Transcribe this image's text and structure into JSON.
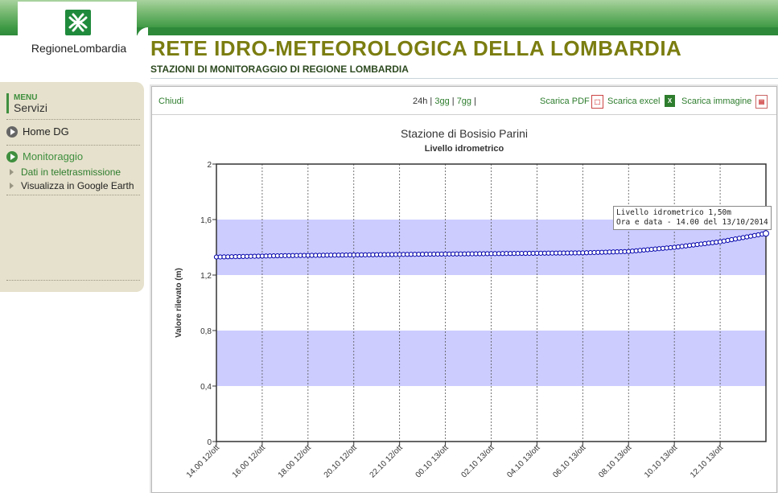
{
  "header": {
    "logo_text": "RegioneLombardia",
    "title": "RETE IDRO-METEOROLOGICA DELLA LOMBARDIA",
    "subtitle": "STAZIONI DI MONITORAGGIO DI REGIONE LOMBARDIA"
  },
  "sidebar": {
    "menu_label": "MENU",
    "menu_title": "Servizi",
    "items": [
      {
        "label": "Home DG",
        "icon": "play-circle-icon",
        "color": "#666666"
      },
      {
        "label": "Monitoraggio",
        "icon": "play-circle-icon",
        "color": "#3f8f3f"
      }
    ],
    "subitems": [
      {
        "label": "Dati in teletrasmissione",
        "color": "#2e7d2e"
      },
      {
        "label": "Visualizza in Google Earth",
        "color": "#222222"
      }
    ]
  },
  "toolbar": {
    "close": "Chiudi",
    "period_24h": "24h",
    "period_3gg": "3gg",
    "period_7gg": "7gg",
    "sep": "|",
    "pdf": "Scarica PDF",
    "excel": "Scarica excel",
    "image": "Scarica immagine"
  },
  "tooltip": {
    "line1": "Livello idrometrico 1,50m",
    "line2": "Ora e data - 14.00 del 13/10/2014"
  },
  "colors": {
    "band": "#ccccff",
    "series": "#0000aa",
    "title_olive": "#7b7d10",
    "link_green": "#2e7d2e"
  },
  "chart_data": {
    "type": "line",
    "title": "Stazione di Bosisio Parini",
    "subtitle": "Livello idrometrico",
    "ylabel": "Valore rilevato (m)",
    "ylim": [
      0,
      2
    ],
    "yticks": [
      "0",
      "0,4",
      "0,8",
      "1,2",
      "1,6",
      "2"
    ],
    "bands": [
      [
        1.2,
        1.6
      ],
      [
        0.4,
        0.8
      ]
    ],
    "xticks": [
      "14.00 12/ott",
      "16.00 12/ott",
      "18.00 12/ott",
      "20.10 12/ott",
      "22.10 12/ott",
      "00.10 13/ott",
      "02.10 13/ott",
      "04.10 13/ott",
      "06.10 13/ott",
      "08.10 13/ott",
      "10.10 13/ott",
      "12.10 13/ott"
    ],
    "xrange_hours": [
      0,
      24
    ],
    "points_per_hour": 6,
    "series": [
      {
        "name": "Livello idrometrico",
        "keypoints": [
          [
            0,
            1.33
          ],
          [
            3,
            1.34
          ],
          [
            9,
            1.35
          ],
          [
            16,
            1.36
          ],
          [
            18,
            1.37
          ],
          [
            20,
            1.4
          ],
          [
            22,
            1.44
          ],
          [
            24,
            1.5
          ]
        ]
      }
    ]
  }
}
